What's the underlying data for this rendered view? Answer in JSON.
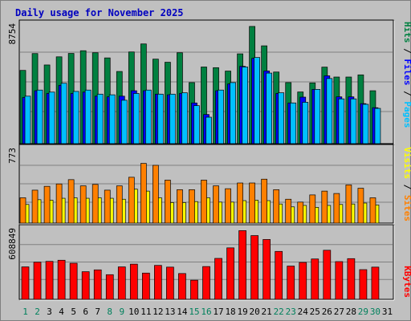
{
  "chart_data": {
    "type": "bar",
    "title": "Daily usage for November 2025",
    "days": [
      "1",
      "2",
      "3",
      "4",
      "5",
      "6",
      "7",
      "8",
      "9",
      "10",
      "11",
      "12",
      "13",
      "14",
      "15",
      "16",
      "17",
      "18",
      "19",
      "20",
      "21",
      "22",
      "23",
      "24",
      "25",
      "26",
      "27",
      "28",
      "29",
      "30",
      "31"
    ],
    "weekend_days": [
      "1",
      "2",
      "8",
      "9",
      "15",
      "16",
      "22",
      "23",
      "29",
      "30"
    ],
    "panels": [
      {
        "max_label": "8754",
        "ymax": 8754,
        "legend": [
          {
            "label": "Hits",
            "color": "#008040"
          },
          {
            "label": "Files",
            "color": "#0000ff"
          },
          {
            "label": "Pages",
            "color": "#00c0ff"
          }
        ],
        "series": [
          {
            "name": "Hits",
            "color": "#008040",
            "values": [
              5400,
              6640,
              5800,
              6400,
              6650,
              6850,
              6700,
              6320,
              5320,
              6760,
              7350,
              6230,
              6000,
              6700,
              4500,
              5650,
              5600,
              5350,
              6620,
              8640,
              7210,
              5280,
              4500,
              3810,
              4480,
              5640,
              4910,
              4910,
              5070,
              3900,
              null
            ]
          },
          {
            "name": "Files",
            "color": "#0000ff",
            "values": [
              3400,
              3900,
              3700,
              4300,
              3700,
              3800,
              3500,
              3450,
              3500,
              3900,
              3900,
              3650,
              3600,
              3700,
              3000,
              2150,
              3900,
              4400,
              5700,
              6290,
              5360,
              3700,
              3000,
              3430,
              4000,
              5000,
              3450,
              3450,
              2950,
              2650,
              null
            ]
          },
          {
            "name": "Pages",
            "color": "#00c0ff",
            "values": [
              3500,
              3950,
              3800,
              4450,
              3850,
              3950,
              3650,
              3600,
              3200,
              3700,
              3950,
              3650,
              3650,
              3750,
              2800,
              1950,
              3950,
              4500,
              5650,
              6350,
              5200,
              3750,
              3000,
              3050,
              4000,
              4800,
              3300,
              3300,
              2900,
              2600,
              null
            ]
          }
        ]
      },
      {
        "max_label": "773",
        "ymax": 773,
        "legend": [
          {
            "label": "Visits",
            "color": "#ffff00"
          },
          {
            "label": "Sites",
            "color": "#ff8000"
          }
        ],
        "series": [
          {
            "name": "Visits",
            "color": "#ffff00",
            "values": [
              195,
              245,
              240,
              260,
              265,
              260,
              265,
              260,
              250,
              355,
              335,
              265,
              215,
              215,
              225,
              265,
              220,
              220,
              235,
              240,
              235,
              200,
              170,
              185,
              165,
              185,
              195,
              200,
              210,
              190,
              null
            ]
          },
          {
            "name": "Sites",
            "color": "#ff8000",
            "values": [
              265,
              345,
              385,
              410,
              455,
              390,
              405,
              345,
              390,
              480,
              625,
              605,
              450,
              350,
              350,
              450,
              390,
              360,
              420,
              420,
              460,
              350,
              250,
              220,
              295,
              335,
              310,
              400,
              365,
              265,
              null
            ]
          }
        ]
      },
      {
        "max_label": "608849",
        "ymax": 608849,
        "legend": [
          {
            "label": "KBytes",
            "color": "#ff0000"
          }
        ],
        "series": [
          {
            "name": "KBytes",
            "color": "#ff0000",
            "values": [
              283000,
              324000,
              331000,
              341000,
              315000,
              241000,
              257000,
              215000,
              283000,
              307000,
              229000,
              296000,
              281000,
              225000,
              167000,
              286000,
              357000,
              449000,
              599000,
              556000,
              522000,
              418000,
              290000,
              322000,
              352000,
              428000,
              329000,
              355000,
              259000,
              281000,
              null
            ]
          }
        ]
      }
    ]
  }
}
